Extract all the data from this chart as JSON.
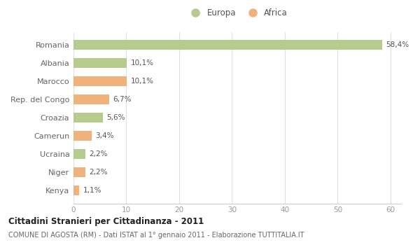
{
  "categories": [
    "Romania",
    "Albania",
    "Marocco",
    "Rep. del Congo",
    "Croazia",
    "Camerun",
    "Ucraina",
    "Niger",
    "Kenya"
  ],
  "values": [
    58.4,
    10.1,
    10.1,
    6.7,
    5.6,
    3.4,
    2.2,
    2.2,
    1.1
  ],
  "labels": [
    "58,4%",
    "10,1%",
    "10,1%",
    "6,7%",
    "5,6%",
    "3,4%",
    "2,2%",
    "2,2%",
    "1,1%"
  ],
  "colors": [
    "#b5cc8e",
    "#b5cc8e",
    "#f0b27a",
    "#f0b27a",
    "#b5cc8e",
    "#f0b27a",
    "#b5cc8e",
    "#f0b27a",
    "#f0b27a"
  ],
  "europa_color": "#b5cc8e",
  "africa_color": "#f0b27a",
  "title": "Cittadini Stranieri per Cittadinanza - 2011",
  "subtitle": "COMUNE DI AGOSTA (RM) - Dati ISTAT al 1° gennaio 2011 - Elaborazione TUTTITALIA.IT",
  "xlim": [
    0,
    62
  ],
  "xticks": [
    0,
    10,
    20,
    30,
    40,
    50,
    60
  ],
  "background_color": "#ffffff",
  "label_color": "#555555",
  "grid_color": "#e0e0e0",
  "ytick_color": "#666666",
  "xtick_color": "#999999",
  "spine_color": "#cccccc",
  "bar_height": 0.55
}
